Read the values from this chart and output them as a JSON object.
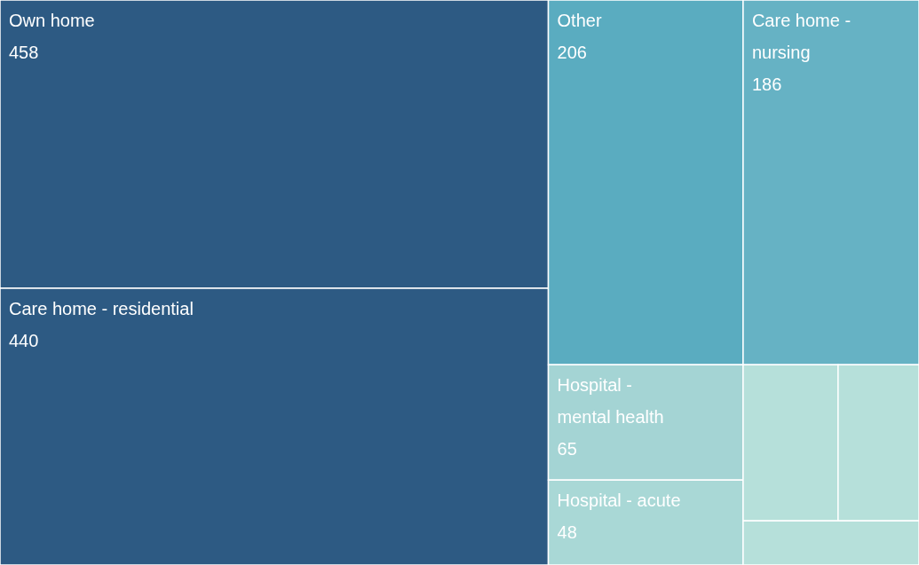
{
  "chart_data": {
    "type": "other",
    "categories": [
      "Own home",
      "Care home - residential",
      "Other",
      "Hospital - mental health",
      "Hospital - acute",
      "Care home - nursing",
      null,
      null,
      null
    ],
    "values": [
      458,
      440,
      206,
      65,
      48,
      186,
      null,
      null,
      null
    ],
    "data_labels": true,
    "colors": [
      "#2d5a83",
      "#2d5a83",
      "#5aacc0",
      "#a4d4d4",
      "#a9d8d6",
      "#66b2c4",
      "#b6e0da",
      "#b6e0da",
      "#b6e0da"
    ]
  }
}
